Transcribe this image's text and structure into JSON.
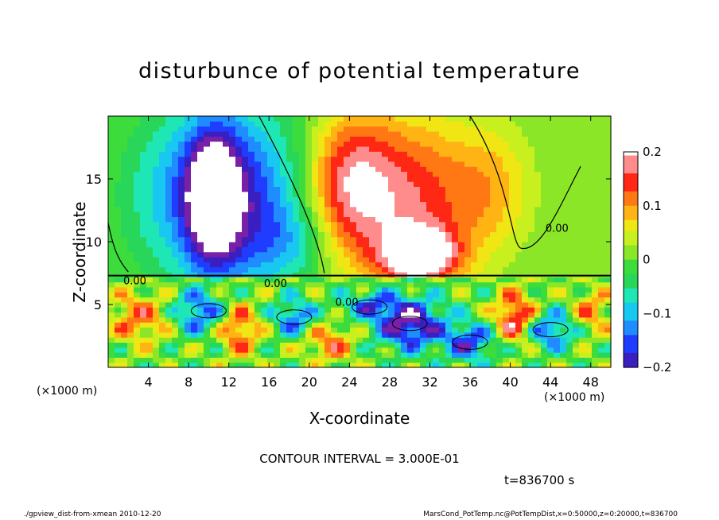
{
  "chart_data": {
    "type": "heatmap",
    "title": "disturbunce of potential temperature",
    "xlabel": "X-coordinate",
    "ylabel": "Z-coordinate",
    "x_unit_label": "(×1000 m)",
    "x_ticks": [
      4,
      8,
      12,
      16,
      20,
      24,
      28,
      32,
      36,
      40,
      44,
      48
    ],
    "y_ticks": [
      5,
      10,
      15
    ],
    "xlim": [
      0,
      50
    ],
    "ylim": [
      0,
      20
    ],
    "colorbar": {
      "ticks": [
        0.2,
        0.1,
        0,
        -0.1,
        -0.2
      ],
      "tick_labels": [
        "0.2",
        "0.1",
        "0",
        "−0.1",
        "−0.2"
      ],
      "range": [
        -0.2,
        0.2
      ]
    },
    "contour_labels": [
      "0.00",
      "0.00",
      "0.00",
      "0.00"
    ],
    "blobs": [
      {
        "x": 12.5,
        "z": 13.5,
        "rx": 6.5,
        "rz": 7.0,
        "v": -0.18
      },
      {
        "x": 10.5,
        "z": 13.5,
        "rx": 2.5,
        "rz": 5.0,
        "v": -0.23
      },
      {
        "x": 6.0,
        "z": 14.0,
        "rx": 5.0,
        "rz": 6.0,
        "v": -0.05
      },
      {
        "x": 18.0,
        "z": 10.0,
        "rx": 4.0,
        "rz": 3.0,
        "v": -0.06
      },
      {
        "x": 29.5,
        "z": 13.0,
        "rx": 7.5,
        "rz": 7.0,
        "v": 0.16
      },
      {
        "x": 31.0,
        "z": 9.0,
        "rx": 3.5,
        "rz": 2.0,
        "v": 0.22
      },
      {
        "x": 24.0,
        "z": 15.0,
        "rx": 4.0,
        "rz": 5.0,
        "v": 0.12
      },
      {
        "x": 38.5,
        "z": 14.5,
        "rx": 4.0,
        "rz": 5.0,
        "v": 0.06
      },
      {
        "x": 46.5,
        "z": 14.5,
        "rx": 5.0,
        "rz": 5.0,
        "v": 0.0
      },
      {
        "x": 3.0,
        "z": 4.0,
        "rx": 3.0,
        "rz": 2.0,
        "v": 0.12
      },
      {
        "x": 9.0,
        "z": 4.5,
        "rx": 2.5,
        "rz": 1.8,
        "v": -0.15
      },
      {
        "x": 13.0,
        "z": 3.0,
        "rx": 2.0,
        "rz": 2.0,
        "v": 0.14
      },
      {
        "x": 18.5,
        "z": 4.0,
        "rx": 2.0,
        "rz": 1.5,
        "v": -0.14
      },
      {
        "x": 22.0,
        "z": 2.0,
        "rx": 2.5,
        "rz": 1.5,
        "v": 0.12
      },
      {
        "x": 26.0,
        "z": 5.0,
        "rx": 3.0,
        "rz": 1.0,
        "v": -0.12
      },
      {
        "x": 30.0,
        "z": 3.5,
        "rx": 3.5,
        "rz": 2.0,
        "v": -0.22
      },
      {
        "x": 36.0,
        "z": 2.0,
        "rx": 2.5,
        "rz": 1.5,
        "v": -0.16
      },
      {
        "x": 40.5,
        "z": 4.0,
        "rx": 2.0,
        "rz": 2.0,
        "v": 0.18
      },
      {
        "x": 44.0,
        "z": 3.0,
        "rx": 2.5,
        "rz": 1.5,
        "v": -0.15
      },
      {
        "x": 48.0,
        "z": 4.5,
        "rx": 2.0,
        "rz": 1.8,
        "v": 0.1
      }
    ]
  },
  "contour_interval": "CONTOUR INTERVAL = 3.000E-01",
  "time_label": "t=836700 s",
  "footer": {
    "left": "./gpview_dist-from-xmean  2010-12-20",
    "right": "MarsCond_PotTemp.nc@PotTempDist,x=0:50000,z=0:20000,t=836700"
  }
}
